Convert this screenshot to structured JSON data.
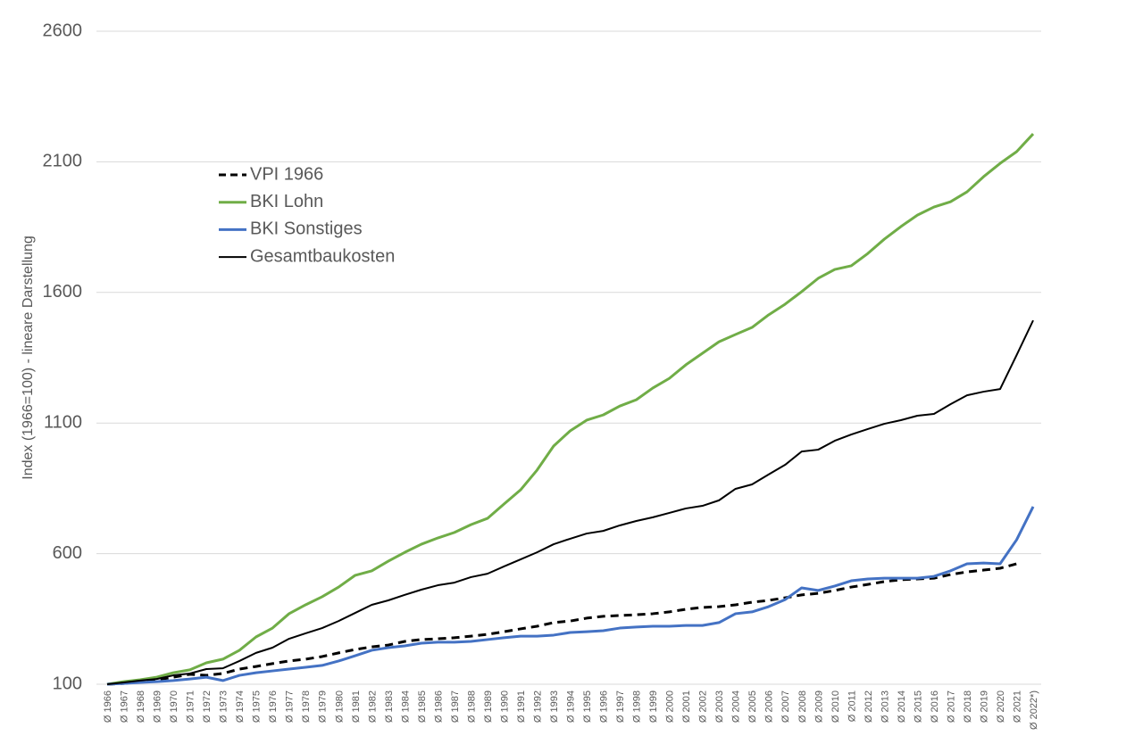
{
  "chart_data": {
    "type": "line",
    "y_label": "Index (1966=100) - lineare Darstellung",
    "categories": [
      "Ø 1966",
      "Ø 1967",
      "Ø 1968",
      "Ø 1969",
      "Ø 1970",
      "Ø 1971",
      "Ø 1972",
      "Ø 1973",
      "Ø 1974",
      "Ø 1975",
      "Ø 1976",
      "Ø 1977",
      "Ø 1978",
      "Ø 1979",
      "Ø 1980",
      "Ø 1981",
      "Ø 1982",
      "Ø 1983",
      "Ø 1984",
      "Ø 1985",
      "Ø 1986",
      "Ø 1987",
      "Ø 1988",
      "Ø 1989",
      "Ø 1990",
      "Ø 1991",
      "Ø 1992",
      "Ø 1993",
      "Ø 1994",
      "Ø 1995",
      "Ø 1996",
      "Ø 1997",
      "Ø 1998",
      "Ø 1999",
      "Ø 2000",
      "Ø 2001",
      "Ø 2002",
      "Ø 2003",
      "Ø 2004",
      "Ø 2005",
      "Ø 2006",
      "Ø 2007",
      "Ø 2008",
      "Ø 2009",
      "Ø 2010",
      "Ø 2011",
      "Ø 2012",
      "Ø 2013",
      "Ø 2014",
      "Ø 2015",
      "Ø 2016",
      "Ø 2017",
      "Ø 2018",
      "Ø 2019",
      "Ø 2020",
      "Ø 2021",
      "Ø 2022*)"
    ],
    "series": [
      {
        "name": "VPI 1966",
        "color": "#000000",
        "dashed": true,
        "values": [
          100,
          103,
          110,
          117,
          127,
          138,
          134,
          141,
          158,
          168,
          179,
          189,
          196,
          206,
          220,
          233,
          243,
          250,
          264,
          271,
          274,
          278,
          284,
          291,
          301,
          312,
          322,
          336,
          342,
          353,
          360,
          363,
          366,
          370,
          377,
          387,
          394,
          397,
          404,
          414,
          421,
          431,
          442,
          448,
          459,
          472,
          482,
          493,
          500,
          503,
          506,
          520,
          530,
          537,
          544,
          561,
          null
        ]
      },
      {
        "name": "BKI Lohn",
        "color": "#70ad47",
        "dashed": false,
        "values": [
          100,
          110,
          117,
          127,
          144,
          155,
          182,
          196,
          230,
          281,
          315,
          370,
          404,
          435,
          472,
          517,
          534,
          571,
          605,
          636,
          660,
          681,
          711,
          735,
          790,
          844,
          920,
          1012,
          1070,
          1111,
          1131,
          1165,
          1189,
          1234,
          1271,
          1323,
          1367,
          1411,
          1439,
          1466,
          1514,
          1555,
          1603,
          1654,
          1688,
          1702,
          1749,
          1804,
          1852,
          1896,
          1927,
          1947,
          1985,
          2043,
          2094,
          2139,
          2207
        ]
      },
      {
        "name": "BKI Sonstiges",
        "color": "#4472c4",
        "dashed": false,
        "values": [
          100,
          103,
          107,
          110,
          114,
          120,
          127,
          114,
          134,
          144,
          151,
          158,
          165,
          172,
          189,
          209,
          230,
          240,
          247,
          257,
          261,
          261,
          264,
          271,
          278,
          284,
          284,
          288,
          298,
          301,
          305,
          315,
          319,
          322,
          322,
          325,
          325,
          336,
          370,
          377,
          397,
          424,
          469,
          459,
          476,
          496,
          503,
          506,
          506,
          506,
          513,
          534,
          561,
          564,
          561,
          653,
          780
        ]
      },
      {
        "name": "Gesamtbaukosten",
        "color": "#000000",
        "dashed": false,
        "values": [
          100,
          107,
          114,
          120,
          134,
          141,
          158,
          161,
          189,
          220,
          240,
          274,
          295,
          315,
          342,
          373,
          404,
          421,
          442,
          462,
          479,
          489,
          510,
          523,
          551,
          578,
          605,
          636,
          657,
          677,
          687,
          708,
          725,
          739,
          756,
          773,
          783,
          804,
          848,
          865,
          903,
          940,
          991,
          998,
          1032,
          1056,
          1077,
          1097,
          1111,
          1128,
          1135,
          1172,
          1206,
          1220,
          1230,
          1360,
          1493
        ]
      }
    ],
    "ylim": [
      100,
      2600
    ],
    "yticks": [
      100,
      600,
      1100,
      1600,
      2100,
      2600
    ],
    "grid": true,
    "legend": "upper left"
  }
}
